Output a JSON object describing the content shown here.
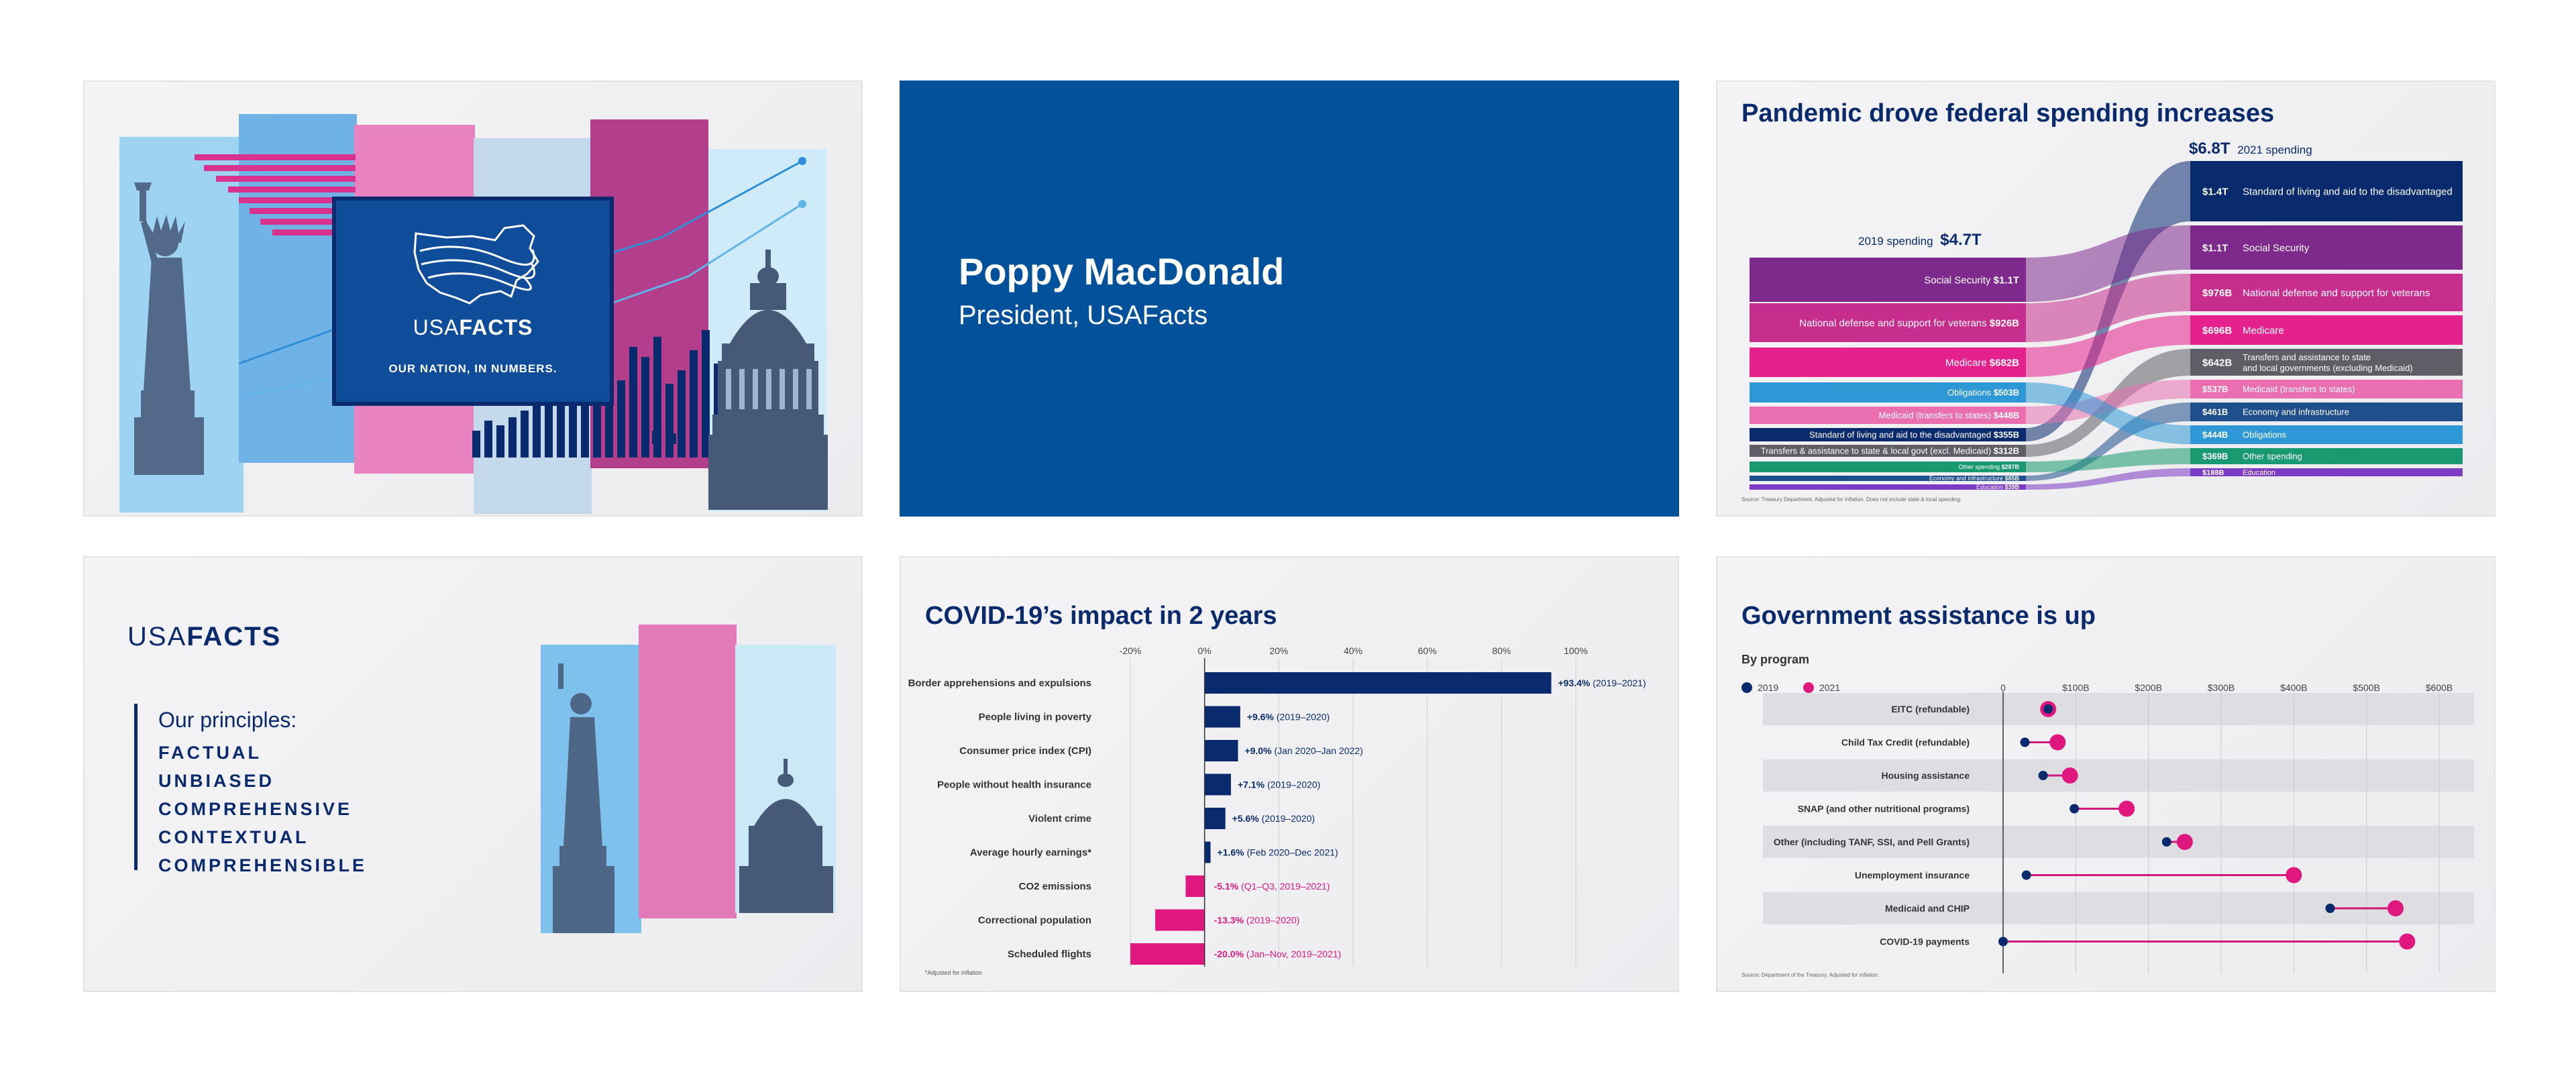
{
  "colors": {
    "navy": "#0a2a6e",
    "blue": "#03519a",
    "pink": "#e6348f",
    "purple": "#8a2a8c",
    "grey": "#f1f1f3"
  },
  "slide1": {
    "logo_light": "USA",
    "logo_bold": "FACTS",
    "tagline": "OUR NATION, IN NUMBERS.",
    "icons": [
      "statue-of-liberty-icon",
      "capitol-dome-icon",
      "us-map-icon"
    ]
  },
  "slide2": {
    "name": "Poppy MacDonald",
    "role": "President, USAFacts"
  },
  "slide3": {
    "title": "Pandemic drove federal spending increases",
    "left_header_label": "2019 spending",
    "left_header_value": "$4.7T",
    "right_header_value": "$6.8T",
    "right_header_label": "2021 spending",
    "source": "Source: Treasury Department. Adjusted for inflation. Does not include state & local spending.",
    "left_items": [
      {
        "label": "Social Security",
        "value": "$1.1T"
      },
      {
        "label": "National defense and support for veterans",
        "value": "$926B"
      },
      {
        "label": "Medicare",
        "value": "$682B"
      },
      {
        "label": "Obligations",
        "value": "$503B"
      },
      {
        "label": "Medicaid (transfers to states)",
        "value": "$448B"
      },
      {
        "label": "Standard of living and aid to the disadvantaged",
        "value": "$355B"
      },
      {
        "label": "Transfers & assistance to state & local govt (excl. Medicaid)",
        "value": "$312B"
      },
      {
        "label": "Other spending",
        "value": "$287B"
      },
      {
        "label": "Economy and infrastructure",
        "value": "$85B"
      },
      {
        "label": "Education",
        "value": "$39B"
      }
    ],
    "right_items": [
      {
        "value": "$1.4T",
        "label": "Standard of living and aid to the disadvantaged"
      },
      {
        "value": "$1.1T",
        "label": "Social Security"
      },
      {
        "value": "$976B",
        "label": "National defense and support for veterans"
      },
      {
        "value": "$696B",
        "label": "Medicare"
      },
      {
        "value": "$642B",
        "label": "Transfers and assistance to state",
        "label2": "and local governments (excluding Medicaid)"
      },
      {
        "value": "$537B",
        "label": "Medicaid (transfers to states)"
      },
      {
        "value": "$461B",
        "label": "Economy and infrastructure"
      },
      {
        "value": "$444B",
        "label": "Obligations"
      },
      {
        "value": "$369B",
        "label": "Other spending"
      },
      {
        "value": "$188B",
        "label": "Education"
      }
    ]
  },
  "slide4": {
    "logo_light": "USA",
    "logo_bold": "FACTS",
    "principles_title": "Our principles:",
    "principles": [
      "FACTUAL",
      "UNBIASED",
      "COMPREHENSIVE",
      "CONTEXTUAL",
      "COMPREHENSIBLE"
    ]
  },
  "chart_data": [
    {
      "type": "bar",
      "title": "COVID-19’s impact in 2 years",
      "xlim": [
        -20,
        100
      ],
      "ticks": [
        "-20%",
        "0%",
        "20%",
        "40%",
        "60%",
        "80%",
        "100%"
      ],
      "note": "*Adjusted for inflation",
      "categories": [
        "Border apprehensions and expulsions",
        "People living in poverty",
        "Consumer price index (CPI)",
        "People without health insurance",
        "Violent crime",
        "Average hourly earnings*",
        "CO2 emissions",
        "Correctional population",
        "Scheduled flights"
      ],
      "values": [
        93.4,
        9.6,
        9.0,
        7.1,
        5.6,
        1.6,
        -5.1,
        -13.3,
        -20.0
      ],
      "value_labels": [
        "+93.4%",
        "+9.6%",
        "+9.0%",
        "+7.1%",
        "+5.6%",
        "+1.6%",
        "-5.1%",
        "-13.3%",
        "-20.0%"
      ],
      "periods": [
        "(2019–2021)",
        "(2019–2020)",
        "(Jan 2020–Jan 2022)",
        "(2019–2020)",
        "(2019–2020)",
        "(Feb 2020–Dec 2021)",
        "(Q1–Q3, 2019–2021)",
        "(2019–2020)",
        "(Jan–Nov, 2019–2021)"
      ]
    },
    {
      "type": "scatter",
      "title": "Government assistance is up",
      "subtitle": "By program",
      "xlim": [
        0,
        600
      ],
      "ticks": [
        "0",
        "$100B",
        "$200B",
        "$300B",
        "$400B",
        "$500B",
        "$600B"
      ],
      "source": "Source: Department of the Treasury. Adjusted for inflation.",
      "categories": [
        "EITC (refundable)",
        "Child Tax Credit (refundable)",
        "Housing assistance",
        "SNAP (and other nutritional programs)",
        "Other (including TANF, SSI, and Pell Grants)",
        "Unemployment insurance",
        "Medicaid and CHIP",
        "COVID-19 payments"
      ],
      "series": [
        {
          "name": "2019",
          "color": "#0a2a6e",
          "values": [
            62,
            30,
            55,
            98,
            225,
            32,
            450,
            0
          ]
        },
        {
          "name": "2021",
          "color": "#e0177f",
          "values": [
            62,
            75,
            92,
            170,
            250,
            400,
            540,
            556
          ]
        }
      ]
    }
  ]
}
